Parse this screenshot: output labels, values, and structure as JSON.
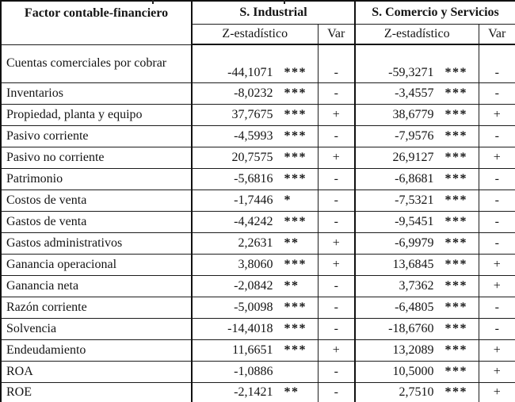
{
  "table": {
    "header": {
      "factor": "Factor contable-financiero",
      "section1": "S. Industrial",
      "section2": "S. Comercio y Servicios",
      "z_label_1": "Z-estadístico",
      "var_label_1": "Var",
      "z_label_2": "Z-estadístico",
      "var_label_2": "Var"
    },
    "rows": [
      {
        "factor": "Cuentas comerciales por\ncobrar",
        "z1": "-44,1071",
        "sig1": "***",
        "var1": "-",
        "z2": "-59,3271",
        "sig2": "***",
        "var2": "-"
      },
      {
        "factor": "Inventarios",
        "z1": "-8,0232",
        "sig1": "***",
        "var1": "-",
        "z2": "-3,4557",
        "sig2": "***",
        "var2": "-"
      },
      {
        "factor": "Propiedad, planta y equipo",
        "z1": "37,7675",
        "sig1": "***",
        "var1": "+",
        "z2": "38,6779",
        "sig2": "***",
        "var2": "+"
      },
      {
        "factor": "Pasivo corriente",
        "z1": "-4,5993",
        "sig1": "***",
        "var1": "-",
        "z2": "-7,9576",
        "sig2": "***",
        "var2": "-"
      },
      {
        "factor": "Pasivo no corriente",
        "z1": "20,7575",
        "sig1": "***",
        "var1": "+",
        "z2": "26,9127",
        "sig2": "***",
        "var2": "+"
      },
      {
        "factor": "Patrimonio",
        "z1": "-5,6816",
        "sig1": "***",
        "var1": "-",
        "z2": "-6,8681",
        "sig2": "***",
        "var2": "-"
      },
      {
        "factor": "Costos de venta",
        "z1": "-1,7446",
        "sig1": "*",
        "var1": "-",
        "z2": "-7,5321",
        "sig2": "***",
        "var2": "-"
      },
      {
        "factor": "Gastos de venta",
        "z1": "-4,4242",
        "sig1": "***",
        "var1": "-",
        "z2": "-9,5451",
        "sig2": "***",
        "var2": "-"
      },
      {
        "factor": "Gastos administrativos",
        "z1": "2,2631",
        "sig1": "**",
        "var1": "+",
        "z2": "-6,9979",
        "sig2": "***",
        "var2": "-"
      },
      {
        "factor": "Ganancia operacional",
        "z1": "3,8060",
        "sig1": "***",
        "var1": "+",
        "z2": "13,6845",
        "sig2": "***",
        "var2": "+"
      },
      {
        "factor": "Ganancia neta",
        "z1": "-2,0842",
        "sig1": "**",
        "var1": "-",
        "z2": "3,7362",
        "sig2": "***",
        "var2": "+"
      },
      {
        "factor": "Razón corriente",
        "z1": "-5,0098",
        "sig1": "***",
        "var1": "-",
        "z2": "-6,4805",
        "sig2": "***",
        "var2": "-"
      },
      {
        "factor": "Solvencia",
        "z1": "-14,4018",
        "sig1": "***",
        "var1": "-",
        "z2": "-18,6760",
        "sig2": "***",
        "var2": "-"
      },
      {
        "factor": "Endeudamiento",
        "z1": "11,6651",
        "sig1": "***",
        "var1": "+",
        "z2": "13,2089",
        "sig2": "***",
        "var2": "+"
      },
      {
        "factor": "ROA",
        "z1": "-1,0886",
        "sig1": "",
        "var1": "-",
        "z2": "10,5000",
        "sig2": "***",
        "var2": "+"
      },
      {
        "factor": "ROE",
        "z1": "-2,1421",
        "sig1": "**",
        "var1": "-",
        "z2": "2,7510",
        "sig2": "***",
        "var2": "+"
      }
    ]
  },
  "colors": {
    "text": "#141414",
    "border": "#111111",
    "background": "#ffffff"
  }
}
